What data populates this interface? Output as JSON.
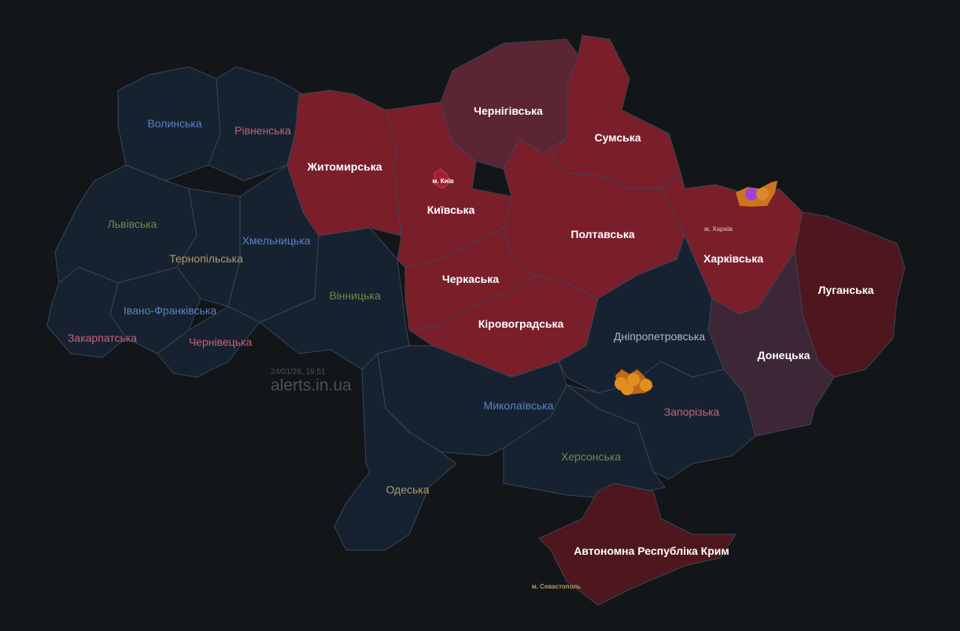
{
  "watermark": {
    "timestamp": "24/01/26, 19:51",
    "site": "alerts.in.ua"
  },
  "colors": {
    "background": "#131619",
    "no_alert": "#172230",
    "alert": "#7a1f2a",
    "alert_partial": "#5b2533",
    "alert_long": "#4d171d",
    "donetsk": "#3d2636",
    "threat_orange": "#d0731e",
    "threat_purple": "#a040e0"
  },
  "regions": [
    {
      "id": "volyn",
      "label": "Волинська",
      "status": "none",
      "label_color": "#5a82c8"
    },
    {
      "id": "rivne",
      "label": "Рівненська",
      "status": "none",
      "label_color": "#c8607a"
    },
    {
      "id": "lviv",
      "label": "Львівська",
      "status": "none",
      "label_color": "#6a8c4a"
    },
    {
      "id": "ternopil",
      "label": "Тернопільська",
      "status": "none",
      "label_color": "#b09a6a"
    },
    {
      "id": "khmelnytskyi",
      "label": "Хмельницька",
      "status": "none",
      "label_color": "#5a82c8"
    },
    {
      "id": "ivano-frankivsk",
      "label": "Івано-Франківська",
      "status": "none",
      "label_color": "#5a82c8"
    },
    {
      "id": "zakarpattia",
      "label": "Закарпатська",
      "status": "none",
      "label_color": "#c8607a"
    },
    {
      "id": "chernivtsi",
      "label": "Чернівецька",
      "status": "none",
      "label_color": "#c8607a"
    },
    {
      "id": "vinnytsia",
      "label": "Вінницька",
      "status": "none",
      "label_color": "#6a8c4a"
    },
    {
      "id": "zhytomyr",
      "label": "Житомирська",
      "status": "alert"
    },
    {
      "id": "kyiv-oblast",
      "label": "Київська",
      "status": "alert"
    },
    {
      "id": "chernihiv",
      "label": "Чернігівська",
      "status": "partial"
    },
    {
      "id": "sumy",
      "label": "Сумська",
      "status": "alert"
    },
    {
      "id": "poltava",
      "label": "Полтавська",
      "status": "alert"
    },
    {
      "id": "cherkasy",
      "label": "Черкаська",
      "status": "alert"
    },
    {
      "id": "kirovohrad",
      "label": "Кіровоградська",
      "status": "alert"
    },
    {
      "id": "kharkiv",
      "label": "Харківська",
      "status": "alert"
    },
    {
      "id": "luhansk",
      "label": "Луганська",
      "status": "long"
    },
    {
      "id": "donetsk",
      "label": "Донецька",
      "status": "donetsk"
    },
    {
      "id": "dnipro",
      "label": "Дніпропетровська",
      "status": "none",
      "label_color": "#a8b8d0"
    },
    {
      "id": "zaporizhzhia",
      "label": "Запорізька",
      "status": "none",
      "label_color": "#c8607a"
    },
    {
      "id": "kherson",
      "label": "Херсонська",
      "status": "none",
      "label_color": "#6a8c4a"
    },
    {
      "id": "mykolaiv",
      "label": "Миколаївська",
      "status": "none",
      "label_color": "#5a82c8"
    },
    {
      "id": "odesa",
      "label": "Одеська",
      "status": "none",
      "label_color": "#b09a6a"
    },
    {
      "id": "crimea",
      "label": "Автономна Республіка Крим",
      "status": "long"
    }
  ],
  "cities": {
    "kyiv": "м. Київ",
    "kharkiv": "м. Харків",
    "sevastopol": "м. Севастополь"
  },
  "threat_icons": [
    {
      "type": "artillery-icon",
      "region": "dnipro"
    },
    {
      "type": "artillery-icon",
      "region": "dnipro"
    },
    {
      "type": "artillery-icon",
      "region": "dnipro"
    },
    {
      "type": "artillery-icon",
      "region": "dnipro"
    },
    {
      "type": "tank-icon",
      "region": "kharkiv"
    },
    {
      "type": "artillery-icon",
      "region": "kharkiv"
    }
  ]
}
